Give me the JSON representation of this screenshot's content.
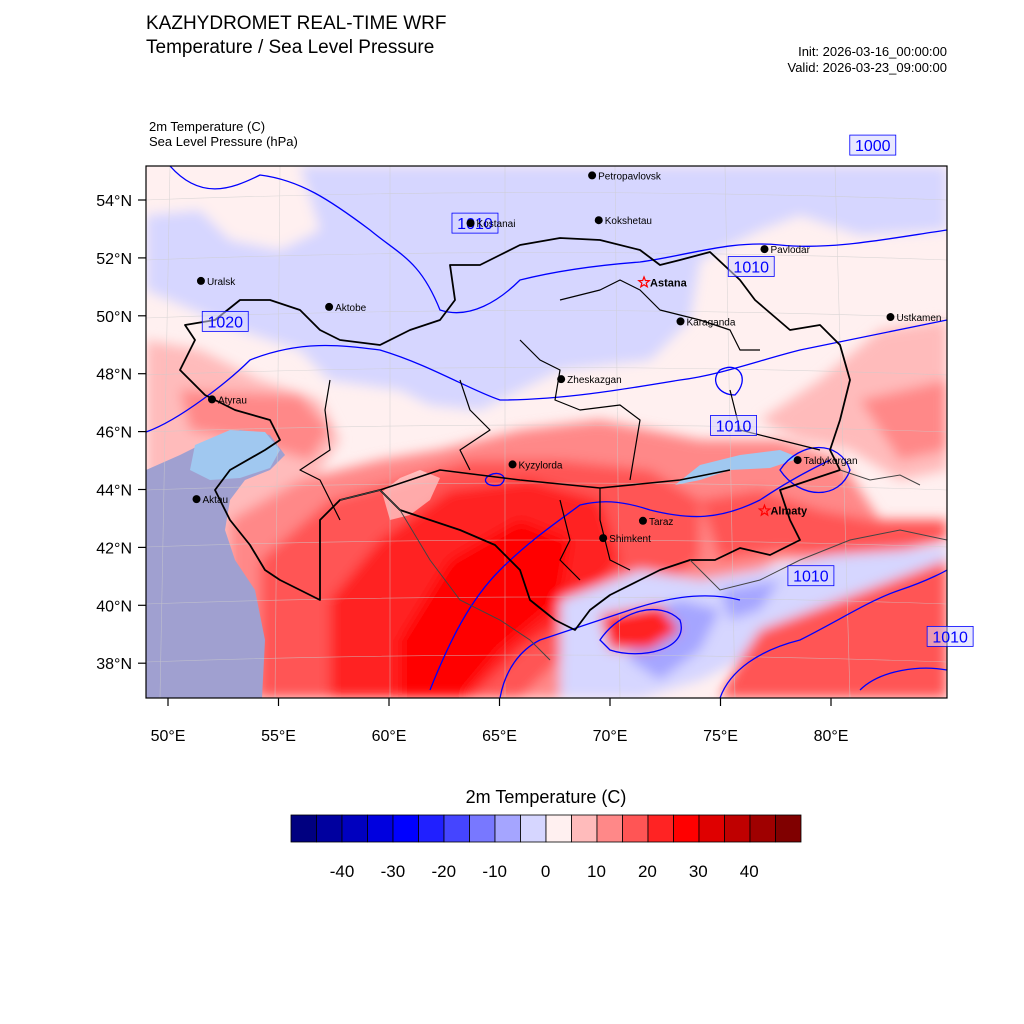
{
  "header": {
    "title_line1": "KAZHYDROMET REAL-TIME WRF",
    "title_line2": "Temperature / Sea Level Pressure",
    "init": "Init: 2026-03-16_00:00:00",
    "valid": "Valid: 2026-03-23_09:00:00",
    "var1": "2m Temperature   (C)",
    "var2": "Sea Level Pressure   (hPa)"
  },
  "map": {
    "lat_labels": [
      "54°N",
      "52°N",
      "50°N",
      "48°N",
      "46°N",
      "44°N",
      "42°N",
      "40°N",
      "38°N"
    ],
    "lon_labels": [
      "50°E",
      "55°E",
      "60°E",
      "65°E",
      "70°E",
      "75°E",
      "80°E"
    ],
    "cities": [
      {
        "name": "Petropavlovsk",
        "lon": 69.1,
        "lat": 54.85,
        "capital": false
      },
      {
        "name": "Kostanai",
        "lon": 63.6,
        "lat": 53.2,
        "capital": false
      },
      {
        "name": "Kokshetau",
        "lon": 69.4,
        "lat": 53.3,
        "capital": false
      },
      {
        "name": "Pavlodar",
        "lon": 76.9,
        "lat": 52.3,
        "capital": false
      },
      {
        "name": "Uralsk",
        "lon": 51.4,
        "lat": 51.2,
        "capital": false
      },
      {
        "name": "Astana",
        "lon": 71.45,
        "lat": 51.15,
        "capital": true
      },
      {
        "name": "Ustkamen",
        "lon": 82.6,
        "lat": 49.95,
        "capital": false
      },
      {
        "name": "Aktobe",
        "lon": 57.2,
        "lat": 50.3,
        "capital": false
      },
      {
        "name": "Karaganda",
        "lon": 73.1,
        "lat": 49.8,
        "capital": false
      },
      {
        "name": "Atyrau",
        "lon": 51.9,
        "lat": 47.1,
        "capital": false
      },
      {
        "name": "Zheskazgan",
        "lon": 67.7,
        "lat": 47.8,
        "capital": false
      },
      {
        "name": "Taldykorgan",
        "lon": 78.4,
        "lat": 45.0,
        "capital": false
      },
      {
        "name": "Aktau",
        "lon": 51.2,
        "lat": 43.65,
        "capital": false
      },
      {
        "name": "Kyzylorda",
        "lon": 65.5,
        "lat": 44.85,
        "capital": false
      },
      {
        "name": "Almaty",
        "lon": 76.9,
        "lat": 43.25,
        "capital": true
      },
      {
        "name": "Taraz",
        "lon": 71.4,
        "lat": 42.9,
        "capital": false
      },
      {
        "name": "Shimkent",
        "lon": 69.6,
        "lat": 42.3,
        "capital": false
      }
    ],
    "isobar_labels": [
      {
        "text": "1000",
        "lon": 81.8,
        "lat": 55.9
      },
      {
        "text": "1010",
        "lon": 63.8,
        "lat": 53.2
      },
      {
        "text": "1010",
        "lon": 76.3,
        "lat": 51.7
      },
      {
        "text": "1020",
        "lon": 52.5,
        "lat": 49.8
      },
      {
        "text": "1010",
        "lon": 75.5,
        "lat": 46.2
      },
      {
        "text": "1010",
        "lon": 79.0,
        "lat": 41.0
      },
      {
        "text": "1010",
        "lon": 85.3,
        "lat": 38.9
      }
    ],
    "colors": {
      "isobar": "#0000ff",
      "border": "#000000",
      "capital_star": "#ff0000"
    }
  },
  "colorbar": {
    "title": "2m Temperature  (C)",
    "colors": [
      "#000080",
      "#00009f",
      "#0000bf",
      "#0000df",
      "#0000ff",
      "#2020ff",
      "#4545ff",
      "#7878ff",
      "#a5a5ff",
      "#d6d6ff",
      "#fff0f0",
      "#ffbbbb",
      "#ff8888",
      "#ff5555",
      "#ff2323",
      "#ff0000",
      "#df0000",
      "#bf0000",
      "#9f0000",
      "#800000"
    ],
    "tick_labels": [
      "-40",
      "-30",
      "-20",
      "-10",
      "0",
      "10",
      "20",
      "30",
      "40"
    ]
  }
}
